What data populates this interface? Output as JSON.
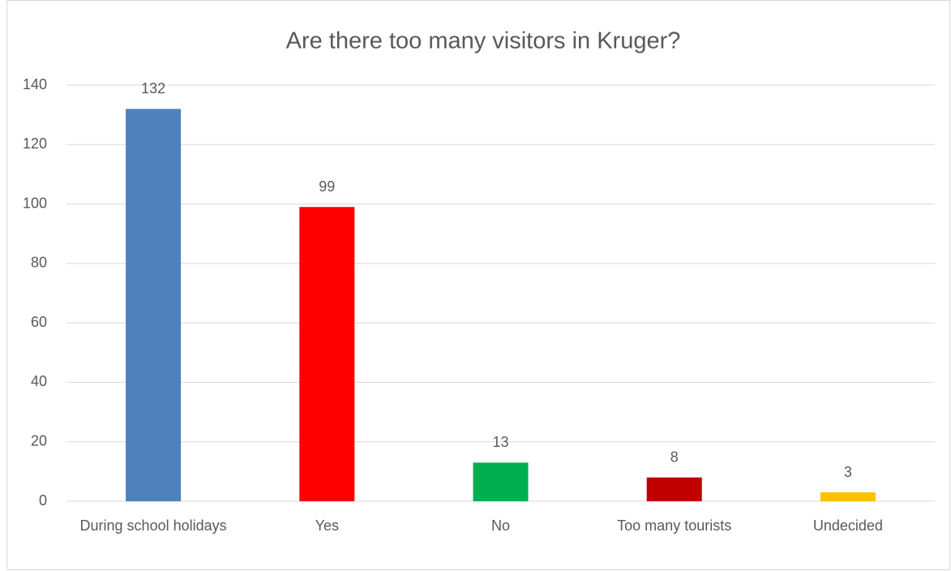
{
  "chart_data": {
    "type": "bar",
    "title": "Are there too many visitors in Kruger?",
    "categories": [
      "During school holidays",
      "Yes",
      "No",
      "Too many tourists",
      "Undecided"
    ],
    "values": [
      132,
      99,
      13,
      8,
      3
    ],
    "colors": [
      "#4f81bd",
      "#ff0000",
      "#00b050",
      "#c00000",
      "#ffc000"
    ],
    "ylim": [
      0,
      140
    ],
    "yticks": [
      0,
      20,
      40,
      60,
      80,
      100,
      120,
      140
    ],
    "grid": true
  }
}
